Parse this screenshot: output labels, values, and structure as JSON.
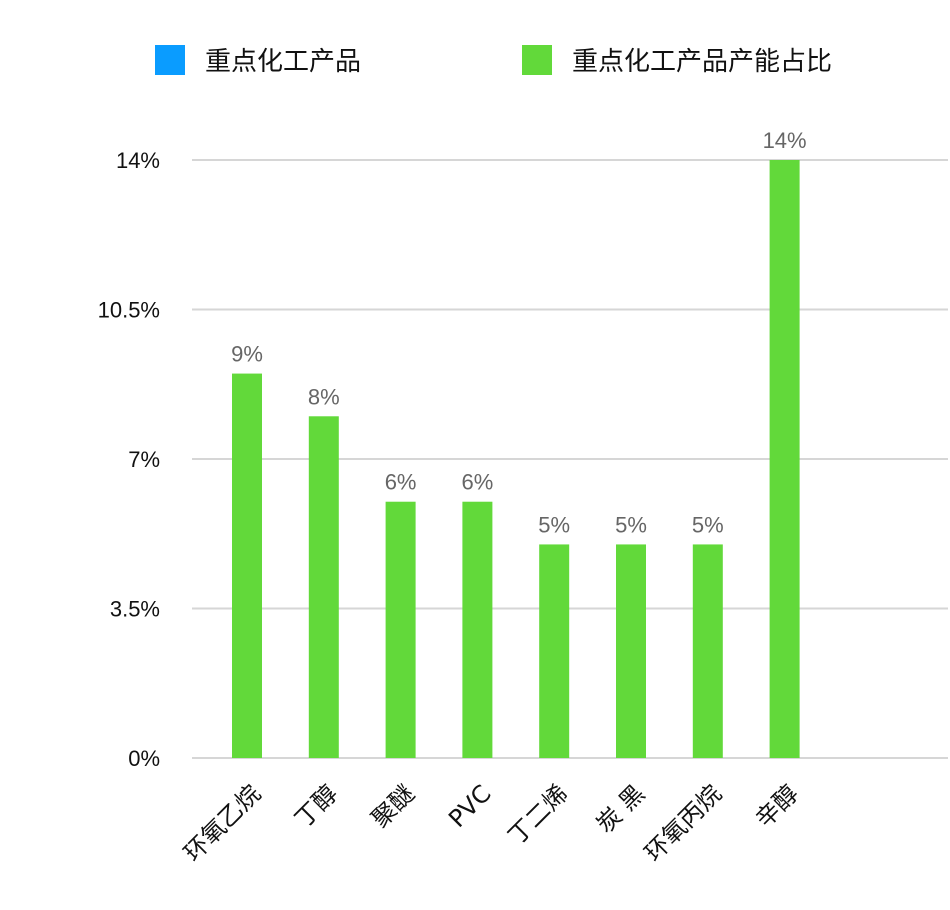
{
  "chart_data": {
    "type": "bar",
    "title": "",
    "xlabel": "",
    "ylabel": "",
    "categories": [
      "环氧乙烷",
      "丁醇",
      "聚醚",
      "PVC",
      "丁二烯",
      "炭 黑",
      "环氧丙烷",
      "辛醇"
    ],
    "series": [
      {
        "name": "重点化工产品",
        "color": "#0a9cff",
        "values": [
          null,
          null,
          null,
          null,
          null,
          null,
          null,
          null
        ]
      },
      {
        "name": "重点化工产品产能占比",
        "color": "#62d93a",
        "values": [
          9,
          8,
          6,
          6,
          5,
          5,
          5,
          14
        ],
        "labels": [
          "9%",
          "8%",
          "6%",
          "6%",
          "5%",
          "5%",
          "5%",
          "14%"
        ]
      }
    ],
    "ylim": [
      0,
      14
    ],
    "yticks": [
      0,
      3.5,
      7,
      10.5,
      14
    ],
    "ytick_labels": [
      "0%",
      "3.5%",
      "7%",
      "10.5%",
      "14%"
    ],
    "grid": true,
    "legend_position": "top"
  }
}
